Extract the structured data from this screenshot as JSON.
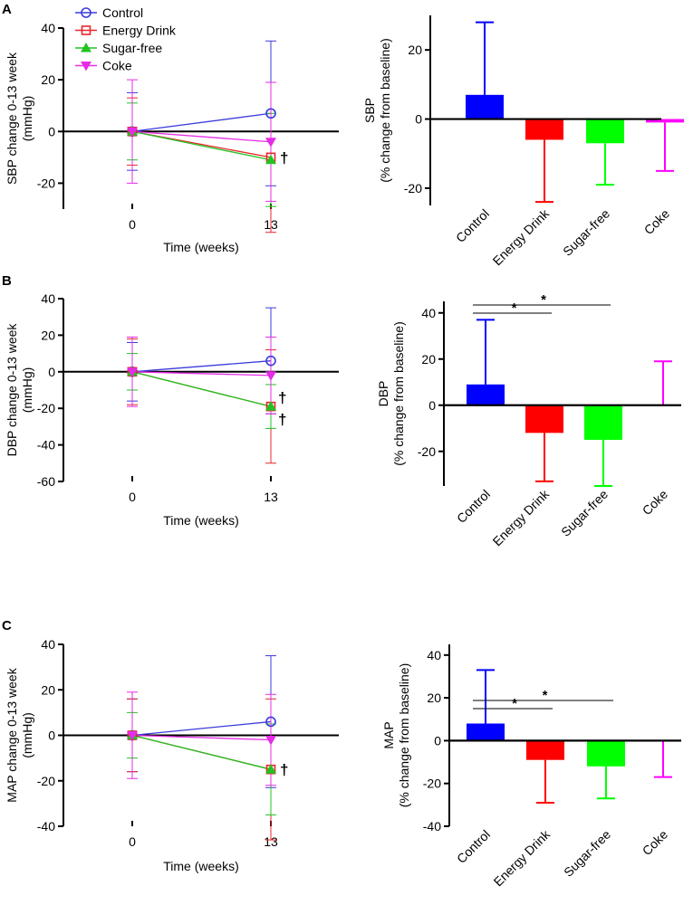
{
  "figure": {
    "legend": [
      {
        "label": "Control",
        "color": "#3b3bdc",
        "marker": "circle"
      },
      {
        "label": "Energy Drink",
        "color": "#e8262c",
        "marker": "square"
      },
      {
        "label": "Sugar-free",
        "color": "#22c322",
        "marker": "triangle-up"
      },
      {
        "label": "Coke",
        "color": "#e62ce6",
        "marker": "triangle-down"
      }
    ],
    "colors": {
      "control": "#3b3bdc",
      "energy": "#e8262c",
      "sugarfree": "#22c322",
      "coke": "#e62ce6",
      "bar_control": "#0000ff",
      "bar_energy": "#ff0000",
      "bar_sugarfree": "#00ff00",
      "bar_coke": "#ff00ff"
    }
  },
  "chart_data": [
    {
      "panel": "A",
      "type": "line",
      "x": [
        0,
        13
      ],
      "xticks": [
        "0",
        "13"
      ],
      "xlabel": "Time (weeks)",
      "ylabel": "SBP change 0-13 week (mmHg)",
      "ylim": [
        -30,
        40
      ],
      "yticks": [
        -20,
        0,
        20,
        40
      ],
      "series": [
        {
          "name": "Control",
          "values": [
            0,
            7
          ],
          "err": [
            15,
            28
          ]
        },
        {
          "name": "Energy Drink",
          "values": [
            0,
            -10
          ],
          "err": [
            13,
            29
          ]
        },
        {
          "name": "Sugar-free",
          "values": [
            0,
            -11
          ],
          "err": [
            11,
            18
          ]
        },
        {
          "name": "Coke",
          "values": [
            0,
            -4
          ],
          "err": [
            20,
            23
          ]
        }
      ],
      "annotations": [
        "†"
      ]
    },
    {
      "panel": "A",
      "type": "bar",
      "categories": [
        "Control",
        "Energy Drink",
        "Sugar-free",
        "Coke"
      ],
      "values": [
        7,
        -6,
        -7,
        -1
      ],
      "errors": [
        21,
        18,
        12,
        14
      ],
      "ylabel": "SBP (% change from baseline)",
      "ylim": [
        -25,
        30
      ],
      "yticks": [
        -20,
        0,
        20
      ]
    },
    {
      "panel": "B",
      "type": "line",
      "x": [
        0,
        13
      ],
      "xticks": [
        "0",
        "13"
      ],
      "xlabel": "Time (weeks)",
      "ylabel": "DBP change 0-13 week (mmHg)",
      "ylim": [
        -60,
        40
      ],
      "yticks": [
        -60,
        -40,
        -20,
        0,
        20,
        40
      ],
      "series": [
        {
          "name": "Control",
          "values": [
            0,
            6
          ],
          "err": [
            16,
            29
          ]
        },
        {
          "name": "Energy Drink",
          "values": [
            0,
            -19
          ],
          "err": [
            18,
            31
          ]
        },
        {
          "name": "Sugar-free",
          "values": [
            0,
            -19
          ],
          "err": [
            10,
            12
          ]
        },
        {
          "name": "Coke",
          "values": [
            0,
            -2
          ],
          "err": [
            19,
            21
          ]
        }
      ],
      "annotations": [
        "†",
        "†"
      ]
    },
    {
      "panel": "B",
      "type": "bar",
      "categories": [
        "Control",
        "Energy Drink",
        "Sugar-free",
        "Coke"
      ],
      "values": [
        9,
        -12,
        -15,
        0
      ],
      "errors": [
        28,
        21,
        20,
        19
      ],
      "ylabel": "DBP (% change from baseline)",
      "ylim": [
        -35,
        45
      ],
      "yticks": [
        -20,
        0,
        20,
        40
      ],
      "significance": [
        {
          "from": 0,
          "to": 1,
          "label": "*"
        },
        {
          "from": 0,
          "to": 2,
          "label": "*"
        }
      ]
    },
    {
      "panel": "C",
      "type": "line",
      "x": [
        0,
        13
      ],
      "xticks": [
        "0",
        "13"
      ],
      "xlabel": "Time (weeks)",
      "ylabel": "MAP change 0-13 week (mmHg)",
      "ylim": [
        -40,
        40
      ],
      "yticks": [
        -40,
        -20,
        0,
        20,
        40
      ],
      "series": [
        {
          "name": "Control",
          "values": [
            0,
            6
          ],
          "err": [
            16,
            29
          ]
        },
        {
          "name": "Energy Drink",
          "values": [
            0,
            -15
          ],
          "err": [
            16,
            31
          ]
        },
        {
          "name": "Sugar-free",
          "values": [
            0,
            -15
          ],
          "err": [
            10,
            20
          ]
        },
        {
          "name": "Coke",
          "values": [
            0,
            -2
          ],
          "err": [
            19,
            20
          ]
        }
      ],
      "annotations": [
        "†"
      ]
    },
    {
      "panel": "C",
      "type": "bar",
      "categories": [
        "Control",
        "Energy Drink",
        "Sugar-free",
        "Coke"
      ],
      "values": [
        8,
        -9,
        -12,
        0
      ],
      "errors": [
        25,
        20,
        15,
        17
      ],
      "ylabel": "MAP (% change from baseline)",
      "ylim": [
        -40,
        45
      ],
      "yticks": [
        -40,
        -20,
        0,
        20,
        40
      ],
      "significance": [
        {
          "from": 0,
          "to": 1,
          "label": "*"
        },
        {
          "from": 0,
          "to": 2,
          "label": "*"
        }
      ]
    }
  ]
}
